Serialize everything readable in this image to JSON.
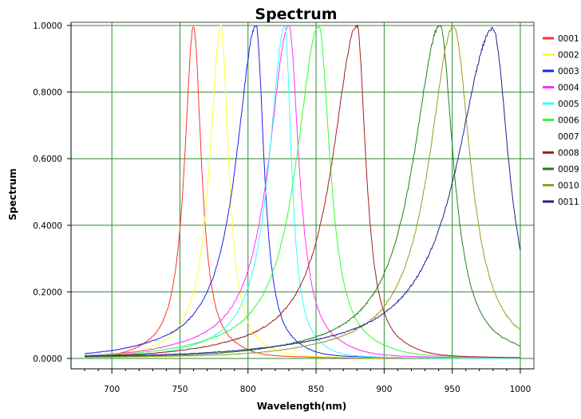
{
  "chart_data": {
    "type": "line",
    "title": "Spectrum",
    "xlabel": "Wavelength(nm)",
    "ylabel": "Spectrum",
    "xlim": [
      670,
      1010
    ],
    "ylim": [
      0,
      1.0
    ],
    "x_ticks": [
      700,
      750,
      800,
      850,
      900,
      950,
      1000
    ],
    "y_ticks": [
      0.0,
      0.2,
      0.4,
      0.6,
      0.8,
      1.0
    ],
    "y_tick_labels": [
      "0.0000",
      "0.2000",
      "0.4000",
      "0.6000",
      "0.8000",
      "1.0000"
    ],
    "grid": true,
    "legend_position": "right",
    "x_range": [
      680,
      1000
    ],
    "series": [
      {
        "name": "0001",
        "color": "#ff3030",
        "peak": 760,
        "amplitude": 1.0,
        "width_left": 8,
        "width_right": 7,
        "visible": true
      },
      {
        "name": "0002",
        "color": "#ffff30",
        "peak": 780,
        "amplitude": 1.0,
        "width_left": 10,
        "width_right": 7,
        "visible": true
      },
      {
        "name": "0003",
        "color": "#2020ee",
        "peak": 806,
        "amplitude": 1.0,
        "width_left": 18,
        "width_right": 7,
        "visible": true
      },
      {
        "name": "0004",
        "color": "#ff30ff",
        "peak": 830,
        "amplitude": 1.0,
        "width_left": 18,
        "width_right": 9,
        "visible": true
      },
      {
        "name": "0005",
        "color": "#30ffff",
        "peak": 827,
        "amplitude": 1.0,
        "width_left": 14,
        "width_right": 6,
        "visible": true
      },
      {
        "name": "0006",
        "color": "#30ff30",
        "peak": 852,
        "amplitude": 1.0,
        "width_left": 20,
        "width_right": 10,
        "visible": true
      },
      {
        "name": "0007",
        "color": "#ffffff",
        "peak": 860,
        "amplitude": 0.0,
        "width_left": 10,
        "width_right": 10,
        "visible": false
      },
      {
        "name": "0008",
        "color": "#a02020",
        "peak": 880,
        "amplitude": 1.0,
        "width_left": 22,
        "width_right": 8,
        "visible": true
      },
      {
        "name": "0009",
        "color": "#208020",
        "peak": 941,
        "amplitude": 1.0,
        "width_left": 24,
        "width_right": 12,
        "visible": true
      },
      {
        "name": "0010",
        "color": "#9a9a20",
        "peak": 951,
        "amplitude": 1.0,
        "width_left": 22,
        "width_right": 15,
        "visible": true
      },
      {
        "name": "0011",
        "color": "#202090",
        "peak": 980,
        "amplitude": 0.99,
        "width_left": 32,
        "width_right": 14,
        "visible": true
      }
    ]
  }
}
